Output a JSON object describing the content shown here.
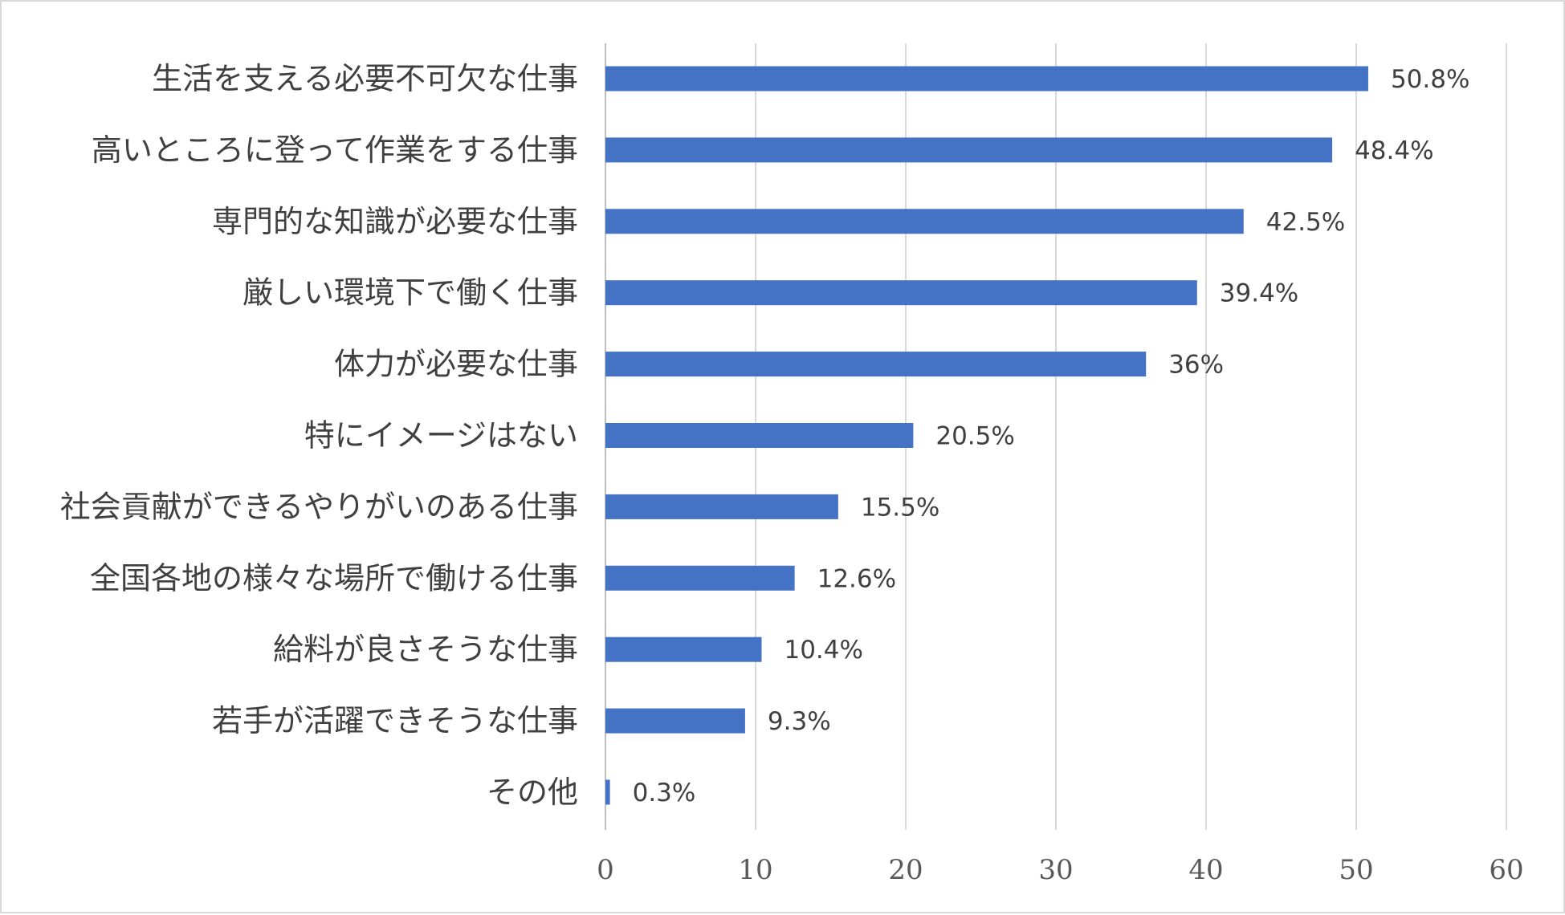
{
  "chart_data": {
    "type": "bar",
    "orientation": "horizontal",
    "categories": [
      "生活を支える必要不可欠な仕事",
      "高いところに登って作業をする仕事",
      "専門的な知識が必要な仕事",
      "厳しい環境下で働く仕事",
      "体力が必要な仕事",
      "特にイメージはない",
      "社会貢献ができるやりがいのある仕事",
      "全国各地の様々な場所で働ける仕事",
      "給料が良さそうな仕事",
      "若手が活躍できそうな仕事",
      "その他"
    ],
    "values": [
      50.8,
      48.4,
      42.5,
      39.4,
      36,
      20.5,
      15.5,
      12.6,
      10.4,
      9.3,
      0.3
    ],
    "value_labels": [
      "50.8%",
      "48.4%",
      "42.5%",
      "39.4%",
      "36%",
      "20.5%",
      "15.5%",
      "12.6%",
      "10.4%",
      "9.3%",
      "0.3%"
    ],
    "xlim": [
      0,
      60
    ],
    "xticks": [
      0,
      10,
      20,
      30,
      40,
      50,
      60
    ],
    "xtick_labels": [
      "0",
      "10",
      "20",
      "30",
      "40",
      "50",
      "60"
    ],
    "grid": true,
    "bar_color": "#4472c4",
    "title": "",
    "xlabel": "",
    "ylabel": ""
  }
}
